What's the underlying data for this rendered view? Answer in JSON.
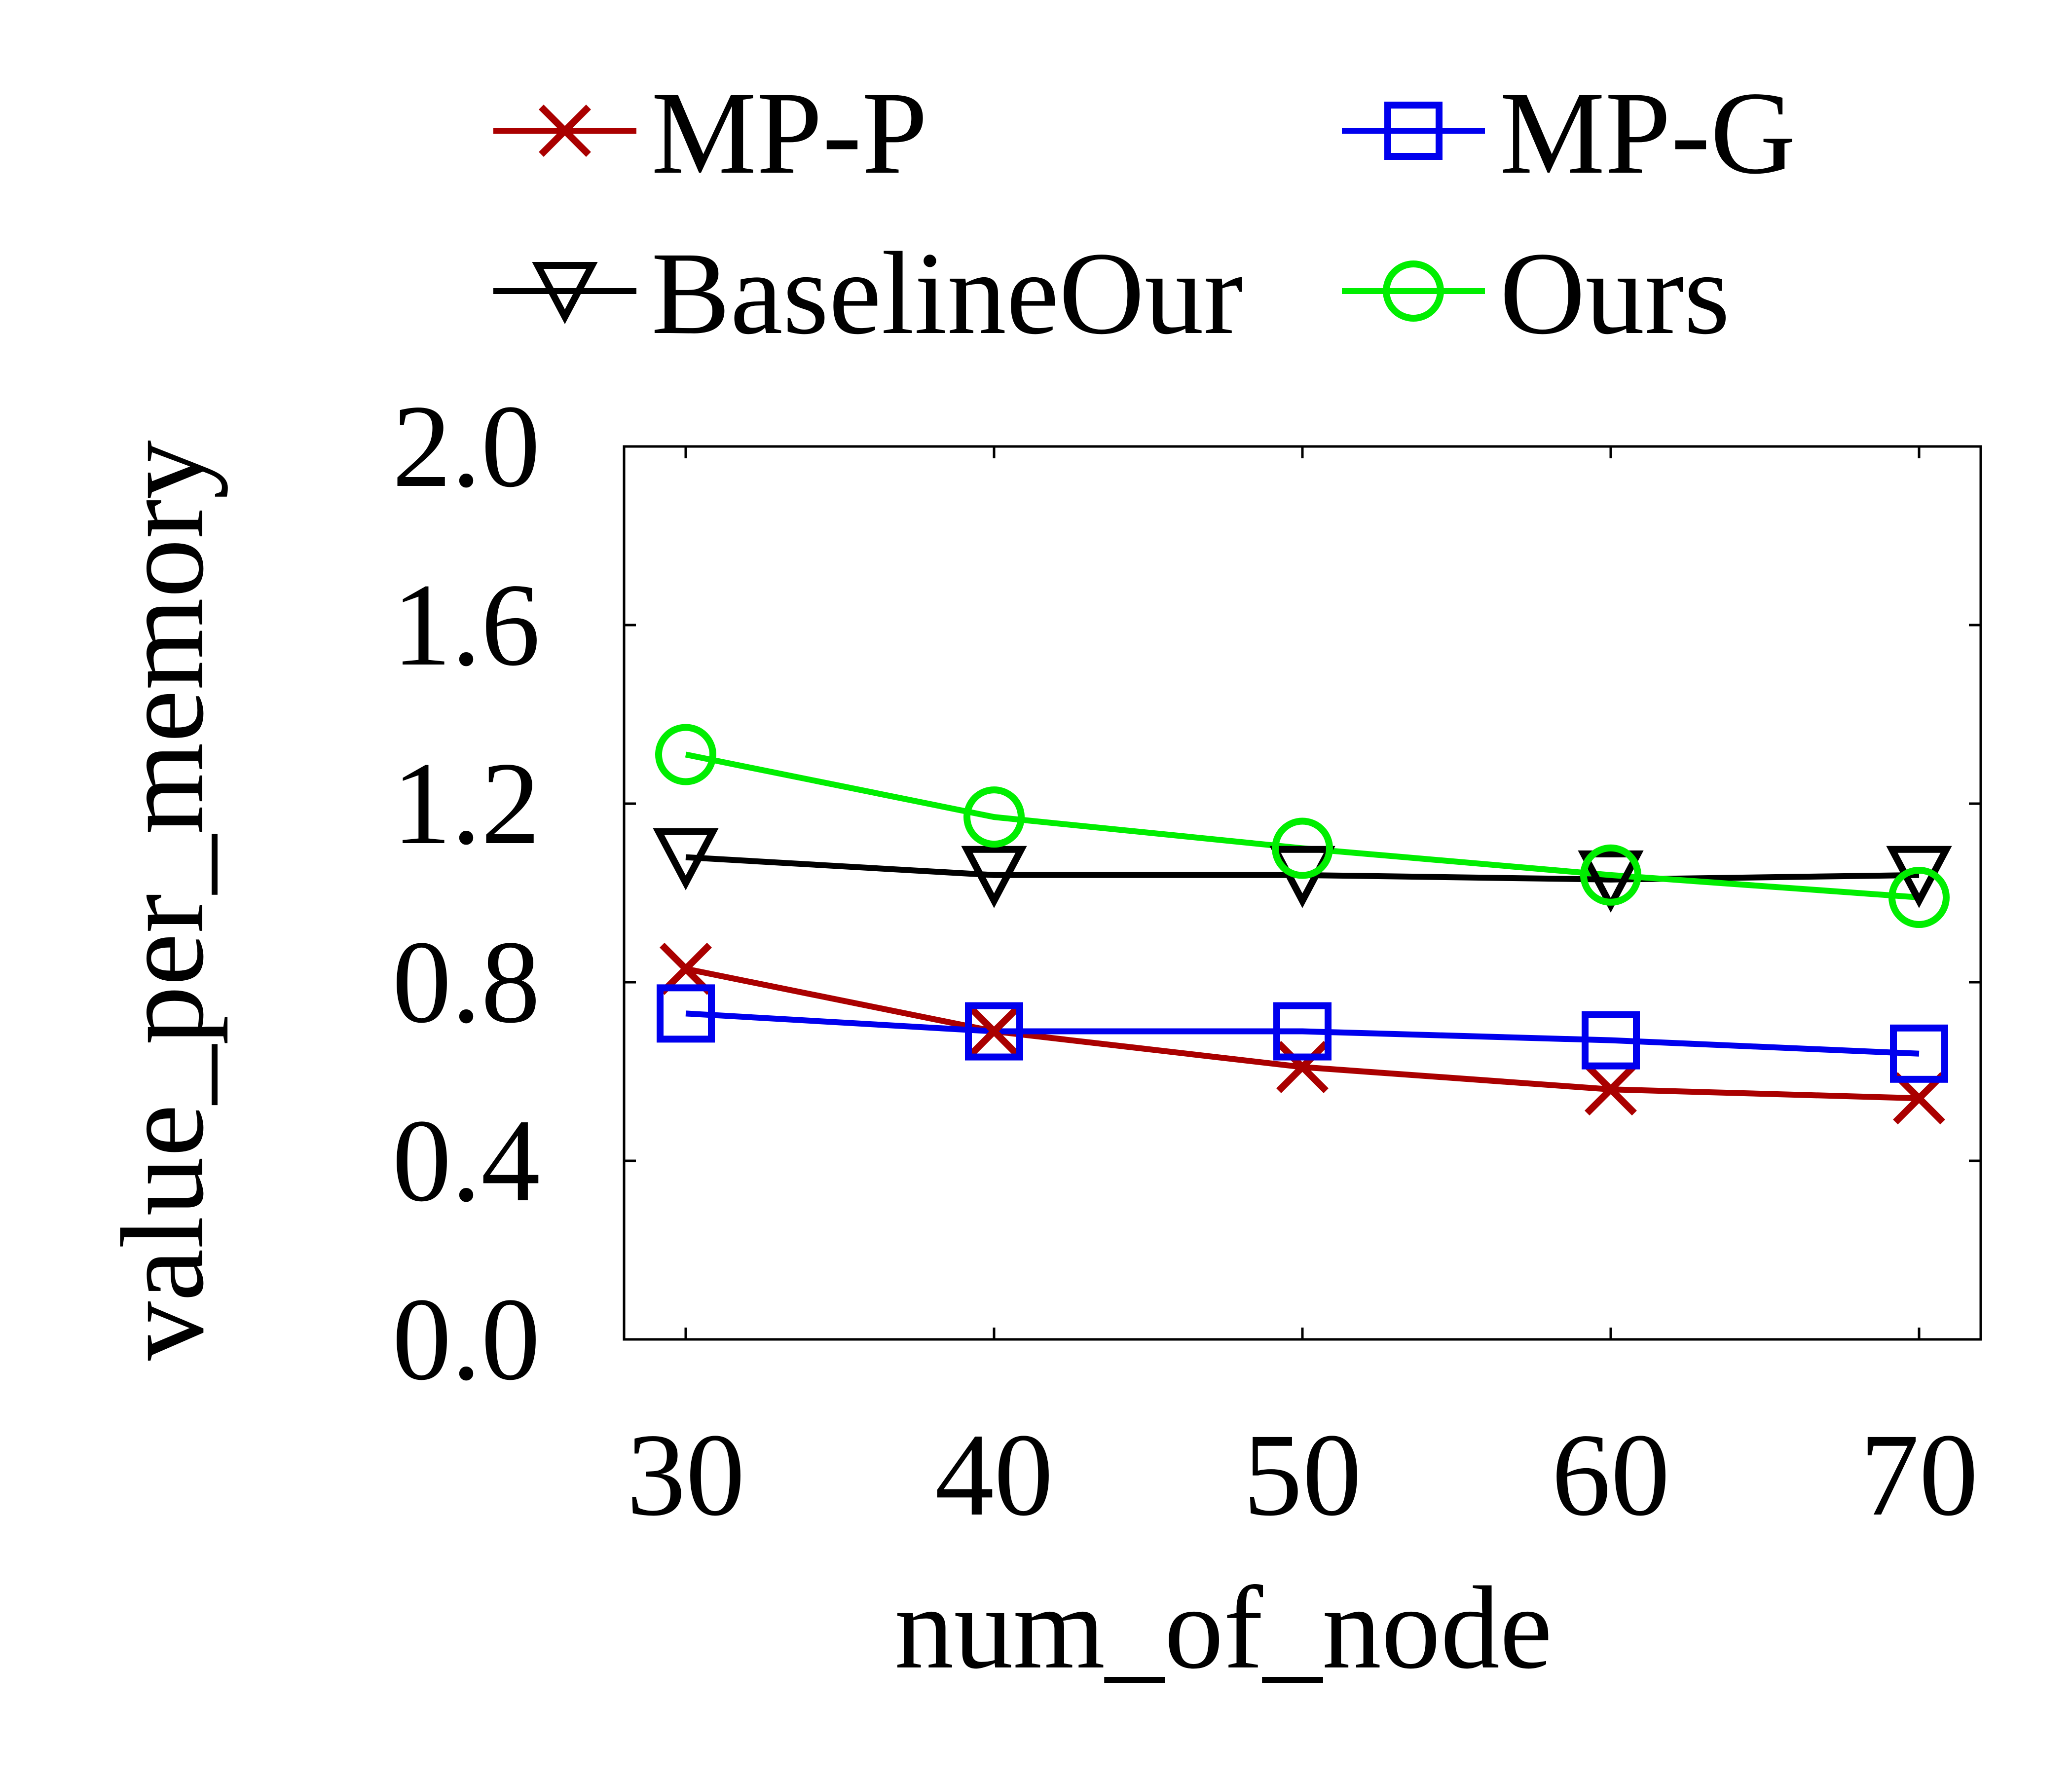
{
  "chart_data": {
    "type": "line",
    "title": "",
    "xlabel": "num_of_node",
    "ylabel": "value_per_memory",
    "x": [
      30,
      40,
      50,
      60,
      70
    ],
    "x_tick_labels": [
      "30",
      "40",
      "50",
      "60",
      "70"
    ],
    "y_ticks": [
      0.0,
      0.4,
      0.8,
      1.2,
      1.6,
      2.0
    ],
    "y_tick_labels": [
      "0.0",
      "0.4",
      "0.8",
      "1.2",
      "1.6",
      "2.0"
    ],
    "ylim": [
      0.0,
      2.0
    ],
    "grid": false,
    "legend_position": "top",
    "series": [
      {
        "name": "MP-P",
        "marker": "x",
        "color": "#aa0000",
        "values": [
          0.83,
          0.69,
          0.61,
          0.56,
          0.54
        ]
      },
      {
        "name": "MP-G",
        "marker": "square",
        "color": "#0000ee",
        "values": [
          0.73,
          0.69,
          0.69,
          0.67,
          0.64
        ]
      },
      {
        "name": "BaselineOur",
        "marker": "triangle-down",
        "color": "#000000",
        "values": [
          1.08,
          1.04,
          1.04,
          1.03,
          1.04
        ]
      },
      {
        "name": "Ours",
        "marker": "circle",
        "color": "#00ee00",
        "values": [
          1.31,
          1.17,
          1.1,
          1.04,
          0.99
        ]
      }
    ]
  }
}
